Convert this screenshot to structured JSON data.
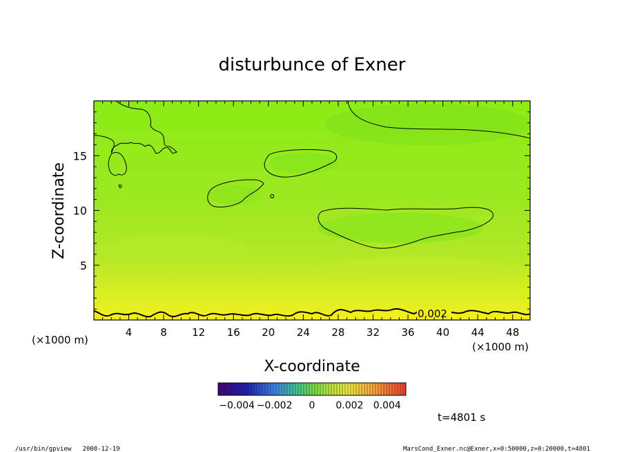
{
  "chart_data": {
    "type": "heatmap",
    "title": "disturbunce of Exner",
    "xlabel": "X-coordinate",
    "ylabel": "Z-coordinate",
    "x_unit": "(×1000 m)",
    "y_unit": "(×1000 m)",
    "xlim": [
      0,
      50
    ],
    "ylim": [
      0,
      20
    ],
    "x_ticks": [
      4,
      8,
      12,
      16,
      20,
      24,
      28,
      32,
      36,
      40,
      44,
      48
    ],
    "y_ticks": [
      5,
      10,
      15
    ],
    "colorbar": {
      "range": [
        -0.005,
        0.005
      ],
      "tick_labels": [
        "−0.004",
        "−0.002",
        "0",
        "0.002",
        "0.004"
      ],
      "tick_values": [
        -0.004,
        -0.002,
        0,
        0.002,
        0.004
      ]
    },
    "contour_label": "0.002",
    "time_label": "t=4801 s",
    "colors": {
      "low_level": "#e8f021",
      "mid_level": "#a8e827",
      "background": "#8cf01a",
      "upper_region": "#80e51c"
    }
  },
  "footer": {
    "left": "/usr/bin/gpview   2008-12-19",
    "right": "MarsCond_Exner.nc@Exner,x=0:50000,z=0:20000,t=4801"
  }
}
